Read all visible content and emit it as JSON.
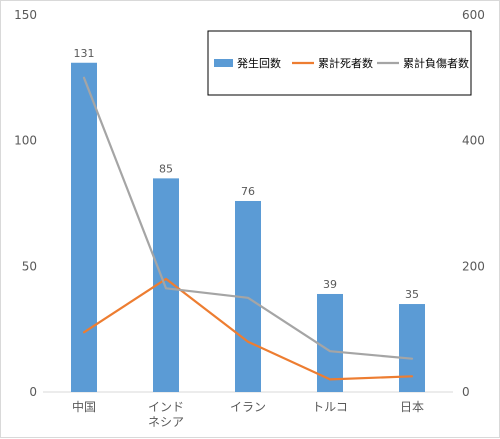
{
  "chart_data": {
    "type": "bar",
    "categories": [
      [
        "中国"
      ],
      [
        "インド",
        "ネシア"
      ],
      [
        "イラン"
      ],
      [
        "トルコ"
      ],
      [
        "日本"
      ]
    ],
    "series": [
      {
        "name": "発生回数",
        "type": "bar",
        "axis": "left",
        "color": "#5b9bd5",
        "values": [
          131,
          85,
          76,
          39,
          35
        ]
      },
      {
        "name": "累計死者数",
        "type": "line",
        "axis": "right",
        "color": "#ed7d31",
        "values": [
          95,
          180,
          80,
          20,
          25
        ]
      },
      {
        "name": "累計負傷者数",
        "type": "line",
        "axis": "right",
        "color": "#a5a5a5",
        "values": [
          500,
          165,
          150,
          65,
          53
        ]
      }
    ],
    "y_left": {
      "min": 0,
      "max": 150,
      "ticks": [
        0,
        50,
        100,
        150
      ]
    },
    "y_right": {
      "min": 0,
      "max": 600,
      "ticks": [
        0,
        200,
        400,
        600
      ]
    },
    "grid": false,
    "legend_position": "top-right"
  }
}
